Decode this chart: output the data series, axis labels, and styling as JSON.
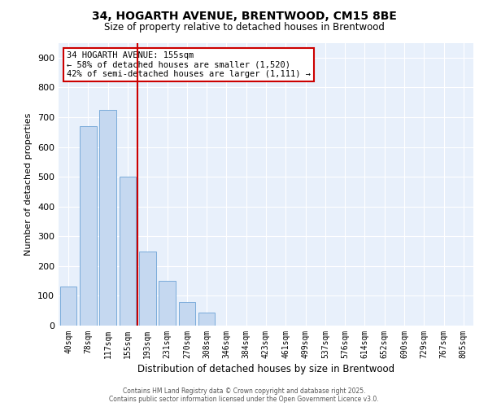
{
  "title_line1": "34, HOGARTH AVENUE, BRENTWOOD, CM15 8BE",
  "title_line2": "Size of property relative to detached houses in Brentwood",
  "xlabel": "Distribution of detached houses by size in Brentwood",
  "ylabel": "Number of detached properties",
  "annotation_line1": "34 HOGARTH AVENUE: 155sqm",
  "annotation_line2": "← 58% of detached houses are smaller (1,520)",
  "annotation_line3": "42% of semi-detached houses are larger (1,111) →",
  "categories": [
    "40sqm",
    "78sqm",
    "117sqm",
    "155sqm",
    "193sqm",
    "231sqm",
    "270sqm",
    "308sqm",
    "346sqm",
    "384sqm",
    "423sqm",
    "461sqm",
    "499sqm",
    "537sqm",
    "576sqm",
    "614sqm",
    "652sqm",
    "690sqm",
    "729sqm",
    "767sqm",
    "805sqm"
  ],
  "values": [
    130,
    670,
    725,
    500,
    250,
    150,
    80,
    45,
    0,
    0,
    0,
    0,
    0,
    0,
    0,
    0,
    0,
    0,
    0,
    0,
    0
  ],
  "bar_color": "#c5d8f0",
  "bar_edge_color": "#7aabda",
  "vline_color": "#cc0000",
  "vline_x_index": 3,
  "annotation_box_edge_color": "#cc0000",
  "annotation_box_face_color": "#ffffff",
  "background_color": "#e8f0fb",
  "grid_color": "#ffffff",
  "ylim": [
    0,
    950
  ],
  "yticks": [
    0,
    100,
    200,
    300,
    400,
    500,
    600,
    700,
    800,
    900
  ],
  "footer_line1": "Contains HM Land Registry data © Crown copyright and database right 2025.",
  "footer_line2": "Contains public sector information licensed under the Open Government Licence v3.0."
}
